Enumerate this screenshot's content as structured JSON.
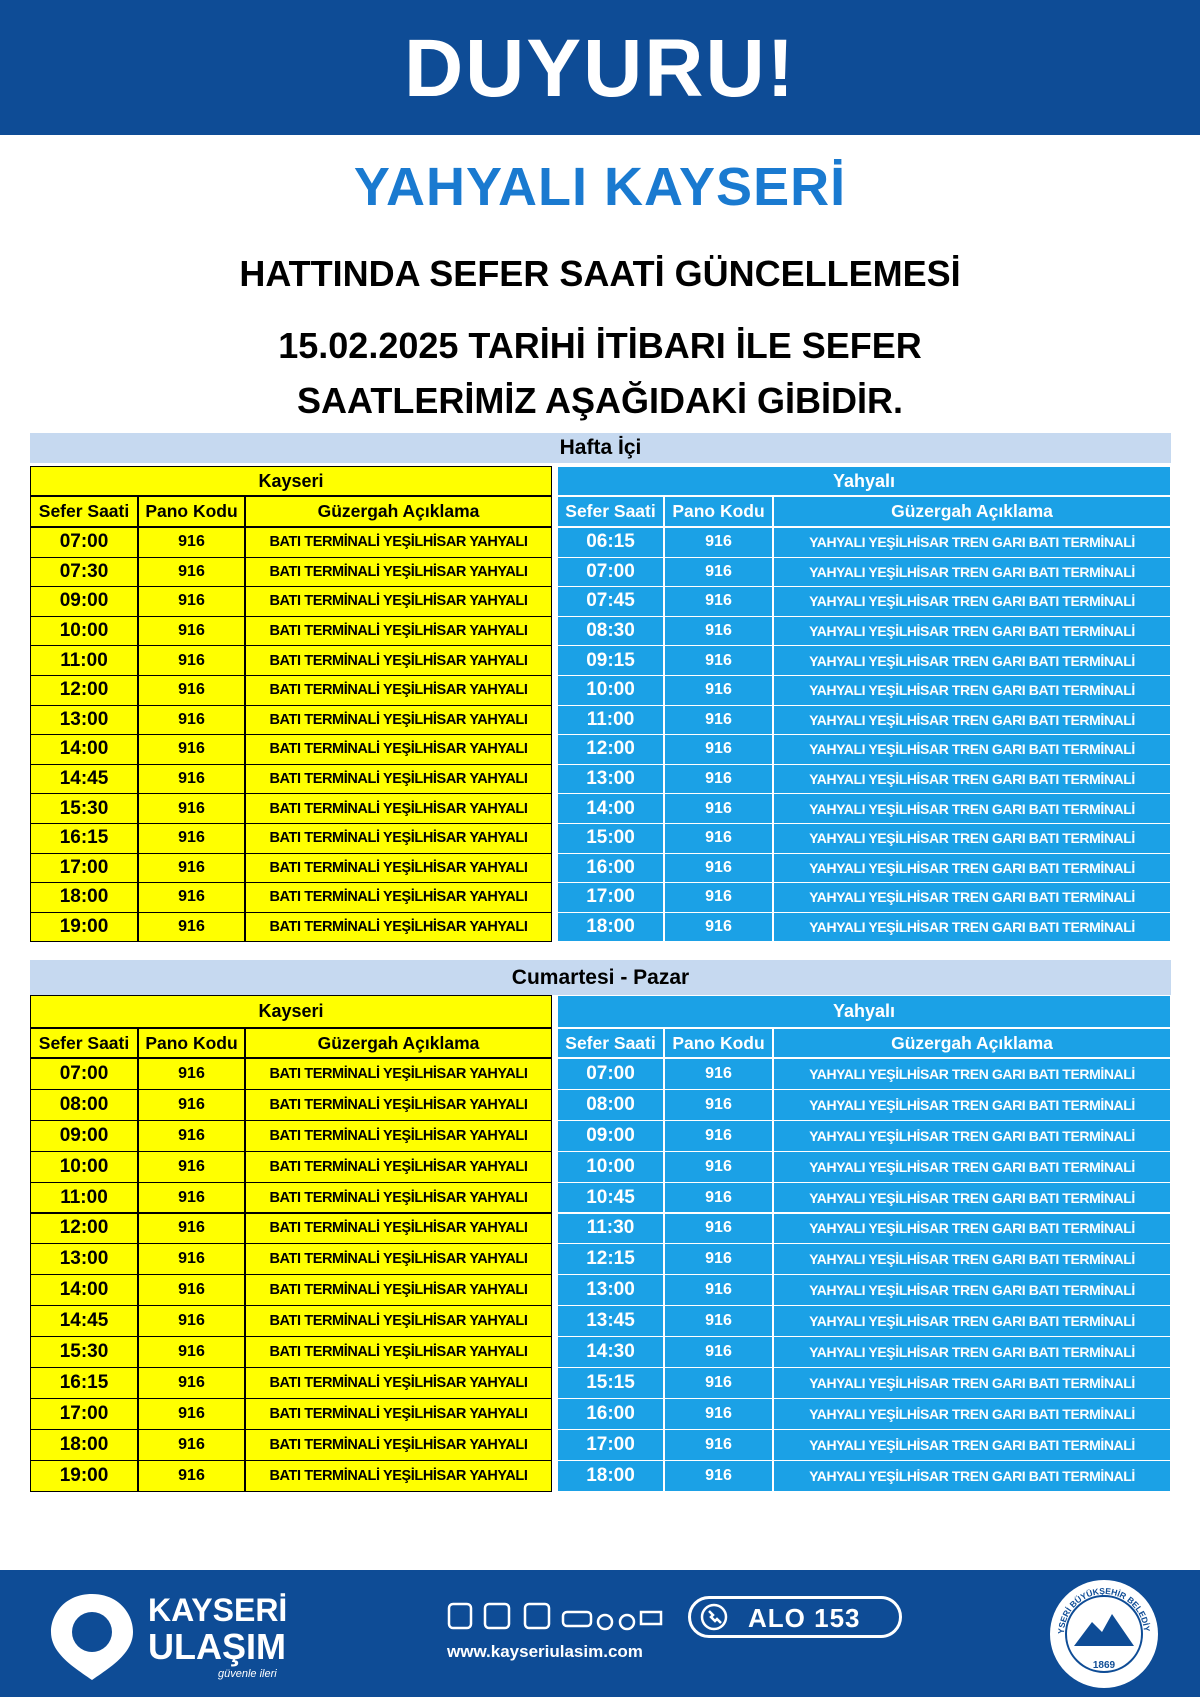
{
  "header": {
    "title": "DUYURU!",
    "route": "YAHYALI KAYSERİ",
    "subtitle": "HATTINDA SEFER SAATİ GÜNCELLEMESİ",
    "notice_line1": "15.02.2025 TARİHİ İTİBARI İLE SEFER",
    "notice_line2": "SAATLERİMİZ AŞAĞIDAKİ GİBİDİR."
  },
  "sections": [
    {
      "title": "Hafta İçi",
      "left": {
        "header": "Kayseri",
        "columns": [
          "Sefer Saati",
          "Pano Kodu",
          "Güzergah Açıklama"
        ],
        "rows": [
          [
            "07:00",
            "916",
            "BATI TERMİNALİ YEŞİLHİSAR YAHYALI"
          ],
          [
            "07:30",
            "916",
            "BATI TERMİNALİ YEŞİLHİSAR YAHYALI"
          ],
          [
            "09:00",
            "916",
            "BATI TERMİNALİ YEŞİLHİSAR YAHYALI"
          ],
          [
            "10:00",
            "916",
            "BATI TERMİNALİ YEŞİLHİSAR YAHYALI"
          ],
          [
            "11:00",
            "916",
            "BATI TERMİNALİ YEŞİLHİSAR YAHYALI"
          ],
          [
            "12:00",
            "916",
            "BATI TERMİNALİ YEŞİLHİSAR YAHYALI"
          ],
          [
            "13:00",
            "916",
            "BATI TERMİNALİ YEŞİLHİSAR YAHYALI"
          ],
          [
            "14:00",
            "916",
            "BATI TERMİNALİ YEŞİLHİSAR YAHYALI"
          ],
          [
            "14:45",
            "916",
            "BATI TERMİNALİ YEŞİLHİSAR YAHYALI"
          ],
          [
            "15:30",
            "916",
            "BATI TERMİNALİ YEŞİLHİSAR YAHYALI"
          ],
          [
            "16:15",
            "916",
            "BATI TERMİNALİ YEŞİLHİSAR YAHYALI"
          ],
          [
            "17:00",
            "916",
            "BATI TERMİNALİ YEŞİLHİSAR YAHYALI"
          ],
          [
            "18:00",
            "916",
            "BATI TERMİNALİ YEŞİLHİSAR YAHYALI"
          ],
          [
            "19:00",
            "916",
            "BATI TERMİNALİ YEŞİLHİSAR YAHYALI"
          ]
        ]
      },
      "right": {
        "header": "Yahyalı",
        "columns": [
          "Sefer Saati",
          "Pano Kodu",
          "Güzergah Açıklama"
        ],
        "rows": [
          [
            "06:15",
            "916",
            "YAHYALI YEŞİLHİSAR TREN GARI BATI TERMİNALİ"
          ],
          [
            "07:00",
            "916",
            "YAHYALI YEŞİLHİSAR TREN GARI BATI TERMİNALİ"
          ],
          [
            "07:45",
            "916",
            "YAHYALI YEŞİLHİSAR TREN GARI BATI TERMİNALİ"
          ],
          [
            "08:30",
            "916",
            "YAHYALI YEŞİLHİSAR TREN GARI BATI TERMİNALİ"
          ],
          [
            "09:15",
            "916",
            "YAHYALI YEŞİLHİSAR TREN GARI BATI TERMİNALİ"
          ],
          [
            "10:00",
            "916",
            "YAHYALI YEŞİLHİSAR TREN GARI BATI TERMİNALİ"
          ],
          [
            "11:00",
            "916",
            "YAHYALI YEŞİLHİSAR TREN GARI BATI TERMİNALİ"
          ],
          [
            "12:00",
            "916",
            "YAHYALI YEŞİLHİSAR TREN GARI BATI TERMİNALİ"
          ],
          [
            "13:00",
            "916",
            "YAHYALI YEŞİLHİSAR TREN GARI BATI TERMİNALİ"
          ],
          [
            "14:00",
            "916",
            "YAHYALI YEŞİLHİSAR TREN GARI BATI TERMİNALİ"
          ],
          [
            "15:00",
            "916",
            "YAHYALI YEŞİLHİSAR TREN GARI BATI TERMİNALİ"
          ],
          [
            "16:00",
            "916",
            "YAHYALI YEŞİLHİSAR TREN GARI BATI TERMİNALİ"
          ],
          [
            "17:00",
            "916",
            "YAHYALI YEŞİLHİSAR TREN GARI BATI TERMİNALİ"
          ],
          [
            "18:00",
            "916",
            "YAHYALI YEŞİLHİSAR TREN GARI BATI TERMİNALİ"
          ]
        ]
      }
    },
    {
      "title": "Cumartesi - Pazar",
      "left": {
        "header": "Kayseri",
        "columns": [
          "Sefer Saati",
          "Pano Kodu",
          "Güzergah Açıklama"
        ],
        "rows": [
          [
            "07:00",
            "916",
            "BATI TERMİNALİ YEŞİLHİSAR YAHYALI"
          ],
          [
            "08:00",
            "916",
            "BATI TERMİNALİ YEŞİLHİSAR YAHYALI"
          ],
          [
            "09:00",
            "916",
            "BATI TERMİNALİ YEŞİLHİSAR YAHYALI"
          ],
          [
            "10:00",
            "916",
            "BATI TERMİNALİ YEŞİLHİSAR YAHYALI"
          ],
          [
            "11:00",
            "916",
            "BATI TERMİNALİ YEŞİLHİSAR YAHYALI"
          ],
          [
            "12:00",
            "916",
            "BATI TERMİNALİ YEŞİLHİSAR YAHYALI"
          ],
          [
            "13:00",
            "916",
            "BATI TERMİNALİ YEŞİLHİSAR YAHYALI"
          ],
          [
            "14:00",
            "916",
            "BATI TERMİNALİ YEŞİLHİSAR YAHYALI"
          ],
          [
            "14:45",
            "916",
            "BATI TERMİNALİ YEŞİLHİSAR YAHYALI"
          ],
          [
            "15:30",
            "916",
            "BATI TERMİNALİ YEŞİLHİSAR YAHYALI"
          ],
          [
            "16:15",
            "916",
            "BATI TERMİNALİ YEŞİLHİSAR YAHYALI"
          ],
          [
            "17:00",
            "916",
            "BATI TERMİNALİ YEŞİLHİSAR YAHYALI"
          ],
          [
            "18:00",
            "916",
            "BATI TERMİNALİ YEŞİLHİSAR YAHYALI"
          ],
          [
            "19:00",
            "916",
            "BATI TERMİNALİ YEŞİLHİSAR YAHYALI"
          ]
        ]
      },
      "right": {
        "header": "Yahyalı",
        "columns": [
          "Sefer Saati",
          "Pano Kodu",
          "Güzergah Açıklama"
        ],
        "rows": [
          [
            "07:00",
            "916",
            "YAHYALI YEŞİLHİSAR TREN GARI BATI TERMİNALİ"
          ],
          [
            "08:00",
            "916",
            "YAHYALI YEŞİLHİSAR TREN GARI BATI TERMİNALİ"
          ],
          [
            "09:00",
            "916",
            "YAHYALI YEŞİLHİSAR TREN GARI BATI TERMİNALİ"
          ],
          [
            "10:00",
            "916",
            "YAHYALI YEŞİLHİSAR TREN GARI BATI TERMİNALİ"
          ],
          [
            "10:45",
            "916",
            "YAHYALI YEŞİLHİSAR TREN GARI BATI TERMİNALİ"
          ],
          [
            "11:30",
            "916",
            "YAHYALI YEŞİLHİSAR TREN GARI BATI TERMİNALİ"
          ],
          [
            "12:15",
            "916",
            "YAHYALI YEŞİLHİSAR TREN GARI BATI TERMİNALİ"
          ],
          [
            "13:00",
            "916",
            "YAHYALI YEŞİLHİSAR TREN GARI BATI TERMİNALİ"
          ],
          [
            "13:45",
            "916",
            "YAHYALI YEŞİLHİSAR TREN GARI BATI TERMİNALİ"
          ],
          [
            "14:30",
            "916",
            "YAHYALI YEŞİLHİSAR TREN GARI BATI TERMİNALİ"
          ],
          [
            "15:15",
            "916",
            "YAHYALI YEŞİLHİSAR TREN GARI BATI TERMİNALİ"
          ],
          [
            "16:00",
            "916",
            "YAHYALI YEŞİLHİSAR TREN GARI BATI TERMİNALİ"
          ],
          [
            "17:00",
            "916",
            "YAHYALI YEŞİLHİSAR TREN GARI BATI TERMİNALİ"
          ],
          [
            "18:00",
            "916",
            "YAHYALI YEŞİLHİSAR TREN GARI BATI TERMİNALİ"
          ]
        ]
      }
    }
  ],
  "footer": {
    "brand_line1": "KAYSERİ",
    "brand_line2": "ULAŞIM",
    "slogan": "güvenle ileri",
    "website": "www.kayseriulasim.com",
    "hotline": "ALO 153",
    "seal_text": "KAYSERİ BÜYÜKŞEHİR BELEDİYESİ",
    "seal_year": "1869"
  }
}
